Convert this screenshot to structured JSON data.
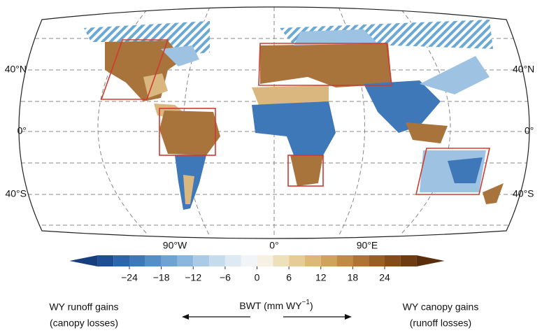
{
  "map": {
    "lat_labels_left": [
      "40°N",
      "0°",
      "40°S"
    ],
    "lat_labels_right": [
      "40°N",
      "0°",
      "40°S"
    ],
    "lon_labels": [
      "90°W",
      "0°",
      "90°E"
    ],
    "colorbar": {
      "ticks": [
        {
          "value": -24,
          "label": "−24"
        },
        {
          "value": -18,
          "label": "−18"
        },
        {
          "value": -12,
          "label": "−12"
        },
        {
          "value": -6,
          "label": "−6"
        },
        0,
        6,
        12,
        18,
        24
      ],
      "label": "BWT (mm WY",
      "label_sup": "−1",
      "label_end": ")"
    },
    "left_caption": [
      "WY runoff gains",
      "(canopy losses)"
    ],
    "right_caption": [
      "WY canopy gains",
      "(runoff losses)"
    ]
  }
}
